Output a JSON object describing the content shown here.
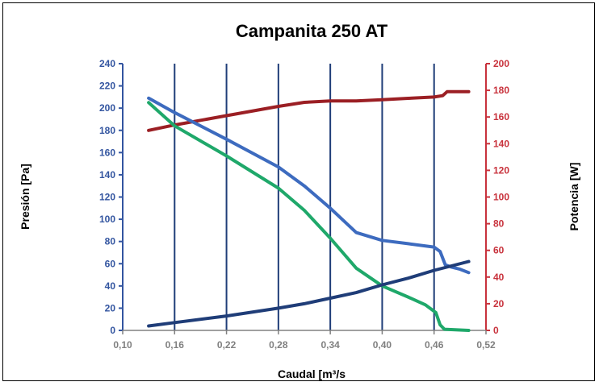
{
  "chart_data": {
    "type": "line",
    "title": "Campanita 250 AT",
    "xlabel": "Caudal [m³/s",
    "ylabel_left": "Presión [Pa]",
    "ylabel_right": "Potencia [W]",
    "xlim": [
      0.1,
      0.52
    ],
    "ylim_left": [
      0,
      240
    ],
    "ylim_right": [
      0,
      200
    ],
    "x_ticks": [
      "0,10",
      "0,16",
      "0,22",
      "0,28",
      "0,34",
      "0,40",
      "0,46",
      "0,52"
    ],
    "y_left_ticks": [
      "0",
      "20",
      "40",
      "60",
      "80",
      "100",
      "120",
      "140",
      "160",
      "180",
      "200",
      "220",
      "240"
    ],
    "y_right_ticks": [
      "0",
      "20",
      "40",
      "60",
      "80",
      "100",
      "120",
      "140",
      "160",
      "180",
      "200"
    ],
    "vertical_grid_x": [
      0.16,
      0.22,
      0.28,
      0.34,
      0.4,
      0.46
    ],
    "series": [
      {
        "axis": "right",
        "color": "#9b1f24",
        "points": [
          [
            0.13,
            150
          ],
          [
            0.16,
            154
          ],
          [
            0.22,
            161
          ],
          [
            0.28,
            168
          ],
          [
            0.31,
            171
          ],
          [
            0.34,
            172
          ],
          [
            0.37,
            172
          ],
          [
            0.4,
            173
          ],
          [
            0.43,
            174
          ],
          [
            0.46,
            175
          ],
          [
            0.47,
            176
          ],
          [
            0.475,
            179
          ],
          [
            0.48,
            179
          ],
          [
            0.5,
            179
          ]
        ]
      },
      {
        "axis": "left",
        "color": "#3d6bbf",
        "points": [
          [
            0.13,
            209
          ],
          [
            0.16,
            196
          ],
          [
            0.22,
            172
          ],
          [
            0.28,
            147
          ],
          [
            0.31,
            130
          ],
          [
            0.34,
            110
          ],
          [
            0.37,
            88
          ],
          [
            0.4,
            81
          ],
          [
            0.43,
            78
          ],
          [
            0.46,
            75
          ],
          [
            0.467,
            71
          ],
          [
            0.473,
            59
          ],
          [
            0.48,
            57
          ],
          [
            0.49,
            55
          ],
          [
            0.5,
            52
          ]
        ]
      },
      {
        "axis": "left",
        "color": "#1fa86a",
        "points": [
          [
            0.13,
            205
          ],
          [
            0.16,
            184
          ],
          [
            0.22,
            157
          ],
          [
            0.28,
            128
          ],
          [
            0.31,
            108
          ],
          [
            0.34,
            83
          ],
          [
            0.37,
            56
          ],
          [
            0.4,
            40
          ],
          [
            0.43,
            30
          ],
          [
            0.45,
            23
          ],
          [
            0.462,
            16
          ],
          [
            0.467,
            5
          ],
          [
            0.472,
            1
          ],
          [
            0.5,
            0
          ]
        ]
      },
      {
        "axis": "left",
        "color": "#1f3d78",
        "points": [
          [
            0.13,
            4
          ],
          [
            0.16,
            7
          ],
          [
            0.22,
            13
          ],
          [
            0.28,
            20
          ],
          [
            0.31,
            24
          ],
          [
            0.34,
            29
          ],
          [
            0.37,
            34
          ],
          [
            0.4,
            41
          ],
          [
            0.43,
            47
          ],
          [
            0.46,
            54
          ],
          [
            0.5,
            62
          ]
        ]
      }
    ]
  }
}
